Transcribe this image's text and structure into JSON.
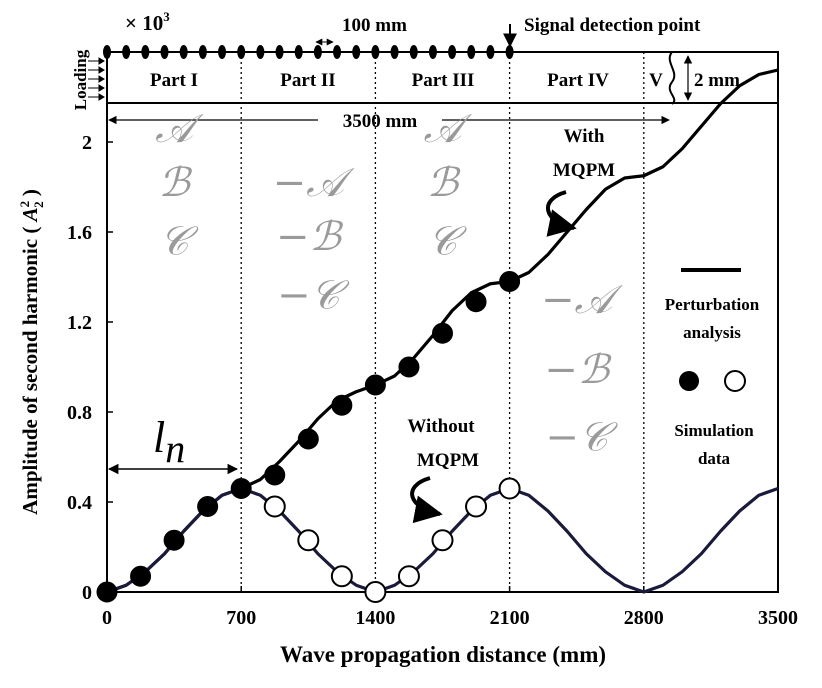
{
  "chart_data": {
    "type": "line",
    "xlabel": "Wave propagation distance (mm)",
    "ylabel": "Amplitude of second harmonic",
    "ylabel_symbol_base": "A",
    "ylabel_symbol_sup": "2",
    "ylabel_symbol_sub": "2",
    "multiplier_label": "× 10",
    "multiplier_exp": "3",
    "xlim": [
      0,
      3500
    ],
    "ylim": [
      0,
      2.4
    ],
    "x_ticks": [
      0,
      700,
      1400,
      2100,
      2800,
      3500
    ],
    "x_tick_labels": [
      "0",
      "700",
      "1400",
      "2100",
      "2800",
      "3500"
    ],
    "y_ticks": [
      0,
      0.4,
      0.8,
      1.2,
      1.6,
      2.0
    ],
    "y_tick_labels": [
      "0",
      "0.4",
      "0.8",
      "1.2",
      "1.6",
      "2"
    ],
    "grid": false,
    "partition_lines": [
      700,
      1400,
      2100,
      2800
    ],
    "series": [
      {
        "name": "With MQPM",
        "color": "#000000",
        "line_x": [
          0,
          100,
          200,
          300,
          400,
          500,
          600,
          700,
          800,
          900,
          1000,
          1100,
          1200,
          1300,
          1400,
          1500,
          1600,
          1700,
          1800,
          1900,
          2000,
          2100,
          2200,
          2300,
          2400,
          2500,
          2600,
          2700,
          2800,
          2900,
          3000,
          3100,
          3200,
          3300,
          3400,
          3500
        ],
        "line_y": [
          0,
          0.03,
          0.09,
          0.17,
          0.27,
          0.36,
          0.43,
          0.46,
          0.5,
          0.58,
          0.67,
          0.77,
          0.85,
          0.89,
          0.92,
          0.96,
          1.04,
          1.14,
          1.25,
          1.33,
          1.37,
          1.38,
          1.42,
          1.5,
          1.6,
          1.7,
          1.79,
          1.84,
          1.85,
          1.89,
          1.97,
          2.07,
          2.17,
          2.25,
          2.3,
          2.32
        ],
        "points_x": [
          0,
          175,
          350,
          525,
          700,
          875,
          1050,
          1225,
          1400,
          1575,
          1750,
          1925,
          2100
        ],
        "points_y": [
          0,
          0.07,
          0.23,
          0.38,
          0.46,
          0.52,
          0.68,
          0.83,
          0.92,
          1.0,
          1.15,
          1.29,
          1.38
        ]
      },
      {
        "name": "Without MQPM",
        "color": "#1a1a3a",
        "line_x": [
          0,
          100,
          200,
          300,
          400,
          500,
          600,
          700,
          800,
          900,
          1000,
          1100,
          1200,
          1300,
          1400,
          1500,
          1600,
          1700,
          1800,
          1900,
          2000,
          2100,
          2200,
          2300,
          2400,
          2500,
          2600,
          2700,
          2800,
          2900,
          3000,
          3100,
          3200,
          3300,
          3400,
          3500
        ],
        "line_y": [
          0,
          0.03,
          0.09,
          0.17,
          0.27,
          0.36,
          0.43,
          0.46,
          0.43,
          0.36,
          0.27,
          0.17,
          0.09,
          0.03,
          0,
          0.03,
          0.09,
          0.17,
          0.27,
          0.36,
          0.43,
          0.46,
          0.43,
          0.36,
          0.27,
          0.17,
          0.09,
          0.03,
          0,
          0.03,
          0.09,
          0.17,
          0.27,
          0.36,
          0.43,
          0.46
        ],
        "points_x": [
          875,
          1050,
          1225,
          1400,
          1575,
          1750,
          1925,
          2100
        ],
        "points_y": [
          0.38,
          0.23,
          0.07,
          0,
          0.07,
          0.23,
          0.38,
          0.46
        ]
      }
    ],
    "legend": {
      "line_label_1": "Perturbation",
      "line_label_2": "analysis",
      "marker_label_1": "Simulation",
      "marker_label_2": "data",
      "placement": "right"
    },
    "annotations": {
      "with_1": "With",
      "with_2": "MQPM",
      "without_1": "Without",
      "without_2": "MQPM",
      "ln_base": "l",
      "ln_sub": "n"
    },
    "schematic": {
      "loading": "Loading",
      "spacing": "100 mm",
      "signal": "Signal detection point",
      "parts": [
        "Part I",
        "Part II",
        "Part III",
        "Part IV",
        "V"
      ],
      "thickness": "2 mm",
      "length": "3500 mm",
      "loading_x": [
        0,
        100,
        200,
        300,
        400,
        500,
        600,
        700,
        800,
        900,
        1000,
        1100,
        1200,
        1300,
        1400,
        1500,
        1600,
        1700,
        1800,
        1900,
        2000,
        2100
      ]
    },
    "part_letters": [
      {
        "x": 350,
        "y": 2.0,
        "text": "𝒜"
      },
      {
        "x": 350,
        "y": 1.76,
        "text": "ℬ"
      },
      {
        "x": 350,
        "y": 1.5,
        "text": "𝒞"
      },
      {
        "x": 1050,
        "y": 1.76,
        "text": "−𝒜"
      },
      {
        "x": 1050,
        "y": 1.52,
        "text": "−ℬ"
      },
      {
        "x": 1050,
        "y": 1.26,
        "text": "−𝒞"
      },
      {
        "x": 1750,
        "y": 2.0,
        "text": "𝒜"
      },
      {
        "x": 1750,
        "y": 1.76,
        "text": "ℬ"
      },
      {
        "x": 1750,
        "y": 1.5,
        "text": "𝒞"
      },
      {
        "x": 2450,
        "y": 1.24,
        "text": "−𝒜"
      },
      {
        "x": 2450,
        "y": 0.93,
        "text": "−ℬ"
      },
      {
        "x": 2450,
        "y": 0.63,
        "text": "−𝒞"
      }
    ]
  }
}
